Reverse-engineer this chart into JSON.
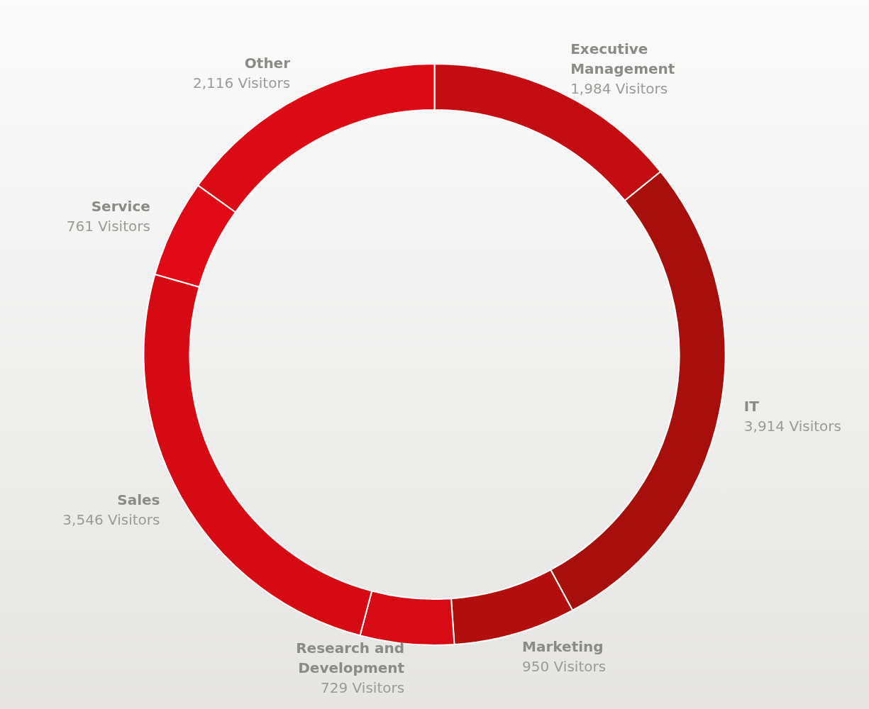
{
  "chart_data": {
    "type": "donut",
    "categories": [
      "Executive Management",
      "IT",
      "Marketing",
      "Research and Development",
      "Sales",
      "Service",
      "Other"
    ],
    "values": [
      1984,
      3914,
      950,
      729,
      3546,
      761,
      2116
    ],
    "colors": [
      "#c40d12",
      "#a70f0c",
      "#b20e0d",
      "#d80a14",
      "#d60a13",
      "#e00915",
      "#dc0a14"
    ],
    "value_labels": [
      "1,984 Visitors",
      "3,914 Visitors",
      "950 Visitors",
      "729 Visitors",
      "3,546 Visitors",
      "761 Visitors",
      "2,116 Visitors"
    ],
    "legend": false
  }
}
